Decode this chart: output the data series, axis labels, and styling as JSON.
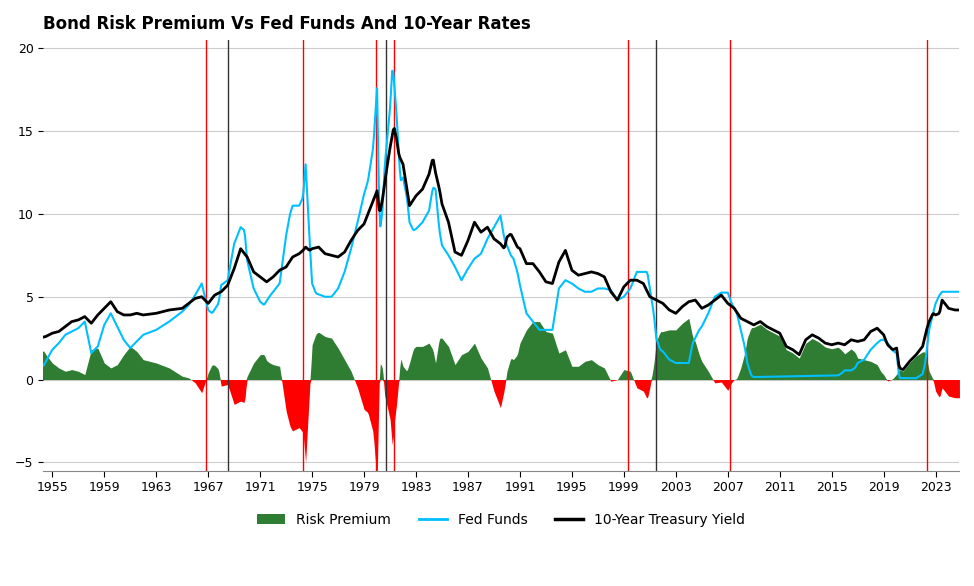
{
  "title": "Bond Risk Premium Vs Fed Funds And 10-Year Rates",
  "title_fontsize": 12,
  "ylim": [
    -5.5,
    20.5
  ],
  "yticks": [
    -5,
    0,
    5,
    10,
    15,
    20
  ],
  "xlim_start": 1954.3,
  "xlim_end": 2024.8,
  "xtick_years": [
    1955,
    1959,
    1963,
    1967,
    1971,
    1975,
    1979,
    1983,
    1987,
    1991,
    1995,
    1999,
    2003,
    2007,
    2011,
    2015,
    2019,
    2023
  ],
  "red_vlines": [
    1966.8,
    1974.3,
    1979.9,
    1981.3,
    1999.3,
    2007.2,
    2022.3
  ],
  "dark_vlines": [
    1968.5,
    1980.7,
    2001.5
  ],
  "fed_funds_color": "#00BFFF",
  "yield_10yr_color": "#000000",
  "risk_premium_pos_color": "#2E7D32",
  "risk_premium_neg_color": "#FF0000",
  "background_color": "#FFFFFF",
  "grid_color": "#CCCCCC",
  "legend_labels": [
    "Risk Premium",
    "Fed Funds",
    "10-Year Treasury Yield"
  ],
  "fed_funds_key": [
    [
      1954.0,
      1.0
    ],
    [
      1954.3,
      0.8
    ],
    [
      1955.0,
      1.8
    ],
    [
      1955.5,
      2.2
    ],
    [
      1956.0,
      2.7
    ],
    [
      1957.0,
      3.1
    ],
    [
      1957.5,
      3.5
    ],
    [
      1958.0,
      1.6
    ],
    [
      1958.5,
      2.0
    ],
    [
      1959.0,
      3.3
    ],
    [
      1959.5,
      4.0
    ],
    [
      1960.0,
      3.2
    ],
    [
      1960.5,
      2.4
    ],
    [
      1961.0,
      1.9
    ],
    [
      1961.5,
      2.3
    ],
    [
      1962.0,
      2.7
    ],
    [
      1963.0,
      3.0
    ],
    [
      1964.0,
      3.5
    ],
    [
      1965.0,
      4.1
    ],
    [
      1965.5,
      4.5
    ],
    [
      1966.0,
      5.1
    ],
    [
      1966.5,
      5.8
    ],
    [
      1967.0,
      4.2
    ],
    [
      1967.3,
      4.0
    ],
    [
      1967.8,
      4.6
    ],
    [
      1968.0,
      5.7
    ],
    [
      1968.5,
      6.0
    ],
    [
      1969.0,
      8.2
    ],
    [
      1969.5,
      9.2
    ],
    [
      1969.8,
      9.0
    ],
    [
      1970.0,
      7.2
    ],
    [
      1970.5,
      5.5
    ],
    [
      1971.0,
      4.7
    ],
    [
      1971.3,
      4.5
    ],
    [
      1971.7,
      5.0
    ],
    [
      1972.0,
      5.3
    ],
    [
      1972.5,
      5.8
    ],
    [
      1973.0,
      8.7
    ],
    [
      1973.3,
      10.0
    ],
    [
      1973.5,
      10.5
    ],
    [
      1974.0,
      10.5
    ],
    [
      1974.3,
      11.0
    ],
    [
      1974.5,
      13.0
    ],
    [
      1974.8,
      8.5
    ],
    [
      1975.0,
      5.8
    ],
    [
      1975.3,
      5.2
    ],
    [
      1976.0,
      5.0
    ],
    [
      1976.5,
      5.0
    ],
    [
      1977.0,
      5.5
    ],
    [
      1977.5,
      6.5
    ],
    [
      1978.0,
      7.9
    ],
    [
      1978.5,
      9.5
    ],
    [
      1979.0,
      11.2
    ],
    [
      1979.3,
      12.0
    ],
    [
      1979.5,
      13.0
    ],
    [
      1979.7,
      14.0
    ],
    [
      1980.0,
      17.6
    ],
    [
      1980.2,
      9.0
    ],
    [
      1980.4,
      10.0
    ],
    [
      1980.6,
      13.0
    ],
    [
      1981.0,
      16.4
    ],
    [
      1981.2,
      19.1
    ],
    [
      1981.5,
      16.0
    ],
    [
      1981.8,
      12.0
    ],
    [
      1982.0,
      12.2
    ],
    [
      1982.3,
      11.0
    ],
    [
      1982.5,
      9.5
    ],
    [
      1982.8,
      9.0
    ],
    [
      1983.0,
      9.1
    ],
    [
      1983.5,
      9.5
    ],
    [
      1984.0,
      10.2
    ],
    [
      1984.3,
      11.6
    ],
    [
      1984.5,
      11.5
    ],
    [
      1984.8,
      9.0
    ],
    [
      1985.0,
      8.1
    ],
    [
      1985.5,
      7.5
    ],
    [
      1986.0,
      6.8
    ],
    [
      1986.5,
      6.0
    ],
    [
      1987.0,
      6.7
    ],
    [
      1987.5,
      7.3
    ],
    [
      1988.0,
      7.6
    ],
    [
      1988.5,
      8.5
    ],
    [
      1989.0,
      9.2
    ],
    [
      1989.5,
      9.9
    ],
    [
      1989.8,
      8.5
    ],
    [
      1990.0,
      8.1
    ],
    [
      1990.3,
      7.5
    ],
    [
      1990.5,
      7.3
    ],
    [
      1990.8,
      6.5
    ],
    [
      1991.0,
      5.7
    ],
    [
      1991.5,
      4.0
    ],
    [
      1991.8,
      3.7
    ],
    [
      1992.0,
      3.5
    ],
    [
      1992.5,
      3.0
    ],
    [
      1993.0,
      3.0
    ],
    [
      1993.5,
      3.0
    ],
    [
      1994.0,
      5.5
    ],
    [
      1994.5,
      6.0
    ],
    [
      1995.0,
      5.8
    ],
    [
      1995.5,
      5.5
    ],
    [
      1996.0,
      5.3
    ],
    [
      1996.5,
      5.3
    ],
    [
      1997.0,
      5.5
    ],
    [
      1997.5,
      5.5
    ],
    [
      1998.0,
      5.4
    ],
    [
      1998.5,
      4.8
    ],
    [
      1999.0,
      5.0
    ],
    [
      1999.5,
      5.5
    ],
    [
      2000.0,
      6.5
    ],
    [
      2000.3,
      6.5
    ],
    [
      2000.8,
      6.5
    ],
    [
      2001.0,
      5.5
    ],
    [
      2001.3,
      4.0
    ],
    [
      2001.5,
      2.5
    ],
    [
      2001.8,
      1.8
    ],
    [
      2002.0,
      1.7
    ],
    [
      2002.5,
      1.2
    ],
    [
      2003.0,
      1.0
    ],
    [
      2003.5,
      1.0
    ],
    [
      2004.0,
      1.0
    ],
    [
      2004.3,
      2.2
    ],
    [
      2004.8,
      3.0
    ],
    [
      2005.0,
      3.2
    ],
    [
      2005.5,
      4.0
    ],
    [
      2006.0,
      5.0
    ],
    [
      2006.5,
      5.25
    ],
    [
      2007.0,
      5.25
    ],
    [
      2007.3,
      4.6
    ],
    [
      2007.7,
      4.0
    ],
    [
      2008.0,
      3.0
    ],
    [
      2008.3,
      2.0
    ],
    [
      2008.5,
      1.0
    ],
    [
      2008.8,
      0.25
    ],
    [
      2009.0,
      0.15
    ],
    [
      2015.5,
      0.25
    ],
    [
      2015.8,
      0.4
    ],
    [
      2016.0,
      0.55
    ],
    [
      2016.5,
      0.55
    ],
    [
      2016.8,
      0.7
    ],
    [
      2017.0,
      1.0
    ],
    [
      2017.5,
      1.2
    ],
    [
      2018.0,
      1.8
    ],
    [
      2018.5,
      2.2
    ],
    [
      2018.8,
      2.4
    ],
    [
      2019.0,
      2.4
    ],
    [
      2019.3,
      2.2
    ],
    [
      2019.7,
      1.75
    ],
    [
      2020.0,
      1.58
    ],
    [
      2020.2,
      0.09
    ],
    [
      2020.5,
      0.09
    ],
    [
      2021.0,
      0.08
    ],
    [
      2021.5,
      0.08
    ],
    [
      2022.0,
      0.33
    ],
    [
      2022.2,
      1.0
    ],
    [
      2022.5,
      3.0
    ],
    [
      2022.8,
      4.0
    ],
    [
      2023.0,
      4.6
    ],
    [
      2023.3,
      5.1
    ],
    [
      2023.5,
      5.3
    ],
    [
      2024.0,
      5.3
    ],
    [
      2024.5,
      5.3
    ]
  ],
  "yield_10yr_key": [
    [
      1954.0,
      2.5
    ],
    [
      1954.5,
      2.6
    ],
    [
      1955.0,
      2.8
    ],
    [
      1955.5,
      2.9
    ],
    [
      1956.0,
      3.2
    ],
    [
      1956.5,
      3.5
    ],
    [
      1957.0,
      3.6
    ],
    [
      1957.5,
      3.8
    ],
    [
      1958.0,
      3.4
    ],
    [
      1958.5,
      3.9
    ],
    [
      1959.0,
      4.3
    ],
    [
      1959.5,
      4.7
    ],
    [
      1960.0,
      4.1
    ],
    [
      1960.5,
      3.9
    ],
    [
      1961.0,
      3.9
    ],
    [
      1961.5,
      4.0
    ],
    [
      1962.0,
      3.9
    ],
    [
      1963.0,
      4.0
    ],
    [
      1964.0,
      4.2
    ],
    [
      1965.0,
      4.3
    ],
    [
      1965.5,
      4.6
    ],
    [
      1966.0,
      4.9
    ],
    [
      1966.5,
      5.0
    ],
    [
      1967.0,
      4.6
    ],
    [
      1967.5,
      5.1
    ],
    [
      1968.0,
      5.3
    ],
    [
      1968.5,
      5.7
    ],
    [
      1969.0,
      6.7
    ],
    [
      1969.5,
      7.9
    ],
    [
      1970.0,
      7.4
    ],
    [
      1970.5,
      6.5
    ],
    [
      1971.0,
      6.2
    ],
    [
      1971.5,
      5.9
    ],
    [
      1972.0,
      6.2
    ],
    [
      1972.5,
      6.6
    ],
    [
      1973.0,
      6.8
    ],
    [
      1973.5,
      7.4
    ],
    [
      1974.0,
      7.6
    ],
    [
      1974.3,
      7.8
    ],
    [
      1974.5,
      8.0
    ],
    [
      1974.8,
      7.8
    ],
    [
      1975.0,
      7.9
    ],
    [
      1975.5,
      8.0
    ],
    [
      1976.0,
      7.6
    ],
    [
      1977.0,
      7.4
    ],
    [
      1977.5,
      7.7
    ],
    [
      1978.0,
      8.4
    ],
    [
      1978.5,
      9.0
    ],
    [
      1979.0,
      9.4
    ],
    [
      1979.5,
      10.4
    ],
    [
      1979.8,
      11.0
    ],
    [
      1980.0,
      11.4
    ],
    [
      1980.2,
      10.0
    ],
    [
      1980.4,
      10.8
    ],
    [
      1980.7,
      12.5
    ],
    [
      1981.0,
      14.0
    ],
    [
      1981.3,
      15.3
    ],
    [
      1981.5,
      14.5
    ],
    [
      1981.7,
      13.5
    ],
    [
      1982.0,
      13.0
    ],
    [
      1982.5,
      10.5
    ],
    [
      1983.0,
      11.1
    ],
    [
      1983.5,
      11.5
    ],
    [
      1984.0,
      12.4
    ],
    [
      1984.3,
      13.4
    ],
    [
      1984.5,
      12.5
    ],
    [
      1984.8,
      11.5
    ],
    [
      1985.0,
      10.6
    ],
    [
      1985.5,
      9.5
    ],
    [
      1986.0,
      7.7
    ],
    [
      1986.5,
      7.5
    ],
    [
      1987.0,
      8.4
    ],
    [
      1987.5,
      9.5
    ],
    [
      1988.0,
      8.9
    ],
    [
      1988.5,
      9.2
    ],
    [
      1989.0,
      8.5
    ],
    [
      1989.5,
      8.2
    ],
    [
      1989.8,
      7.9
    ],
    [
      1990.0,
      8.6
    ],
    [
      1990.3,
      8.8
    ],
    [
      1990.5,
      8.5
    ],
    [
      1990.8,
      8.0
    ],
    [
      1991.0,
      7.9
    ],
    [
      1991.5,
      7.0
    ],
    [
      1992.0,
      7.0
    ],
    [
      1992.5,
      6.5
    ],
    [
      1993.0,
      5.9
    ],
    [
      1993.5,
      5.8
    ],
    [
      1994.0,
      7.1
    ],
    [
      1994.5,
      7.8
    ],
    [
      1995.0,
      6.6
    ],
    [
      1995.5,
      6.3
    ],
    [
      1996.0,
      6.4
    ],
    [
      1996.5,
      6.5
    ],
    [
      1997.0,
      6.4
    ],
    [
      1997.5,
      6.2
    ],
    [
      1998.0,
      5.3
    ],
    [
      1998.5,
      4.8
    ],
    [
      1999.0,
      5.6
    ],
    [
      1999.5,
      6.0
    ],
    [
      2000.0,
      6.0
    ],
    [
      2000.5,
      5.8
    ],
    [
      2001.0,
      5.0
    ],
    [
      2001.5,
      4.8
    ],
    [
      2002.0,
      4.6
    ],
    [
      2002.5,
      4.2
    ],
    [
      2003.0,
      4.0
    ],
    [
      2003.5,
      4.4
    ],
    [
      2004.0,
      4.7
    ],
    [
      2004.5,
      4.8
    ],
    [
      2005.0,
      4.3
    ],
    [
      2005.5,
      4.5
    ],
    [
      2006.0,
      4.8
    ],
    [
      2006.5,
      5.1
    ],
    [
      2007.0,
      4.6
    ],
    [
      2007.5,
      4.3
    ],
    [
      2008.0,
      3.7
    ],
    [
      2008.5,
      3.5
    ],
    [
      2009.0,
      3.3
    ],
    [
      2009.5,
      3.5
    ],
    [
      2010.0,
      3.2
    ],
    [
      2010.5,
      3.0
    ],
    [
      2011.0,
      2.8
    ],
    [
      2011.5,
      2.0
    ],
    [
      2012.0,
      1.8
    ],
    [
      2012.5,
      1.5
    ],
    [
      2013.0,
      2.4
    ],
    [
      2013.5,
      2.7
    ],
    [
      2014.0,
      2.5
    ],
    [
      2014.5,
      2.2
    ],
    [
      2015.0,
      2.1
    ],
    [
      2015.5,
      2.2
    ],
    [
      2016.0,
      2.1
    ],
    [
      2016.5,
      2.4
    ],
    [
      2017.0,
      2.3
    ],
    [
      2017.5,
      2.4
    ],
    [
      2018.0,
      2.9
    ],
    [
      2018.5,
      3.1
    ],
    [
      2019.0,
      2.7
    ],
    [
      2019.3,
      2.1
    ],
    [
      2019.7,
      1.8
    ],
    [
      2020.0,
      1.9
    ],
    [
      2020.2,
      0.7
    ],
    [
      2020.5,
      0.6
    ],
    [
      2021.0,
      1.1
    ],
    [
      2021.5,
      1.5
    ],
    [
      2022.0,
      2.0
    ],
    [
      2022.3,
      3.0
    ],
    [
      2022.5,
      3.5
    ],
    [
      2022.8,
      4.0
    ],
    [
      2023.0,
      3.9
    ],
    [
      2023.3,
      4.0
    ],
    [
      2023.5,
      4.8
    ],
    [
      2023.8,
      4.5
    ],
    [
      2024.0,
      4.3
    ],
    [
      2024.5,
      4.2
    ]
  ]
}
